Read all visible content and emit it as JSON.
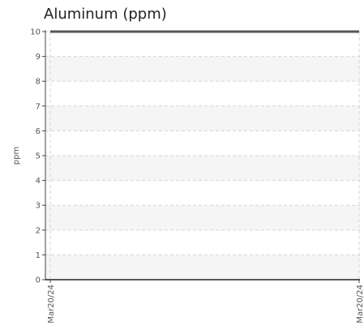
{
  "chart_data": {
    "type": "line",
    "title": "Aluminum (ppm)",
    "xlabel": "",
    "ylabel": "ppm",
    "ylim": [
      0,
      10
    ],
    "yticks": [
      "0",
      "1",
      "2",
      "3",
      "4",
      "5",
      "6",
      "7",
      "8",
      "9",
      "10"
    ],
    "xticks": [
      "Mar20/24",
      "Mar20/24"
    ],
    "grid": true,
    "series": [
      {
        "values": [
          10,
          10
        ],
        "color": "#555555"
      }
    ]
  }
}
